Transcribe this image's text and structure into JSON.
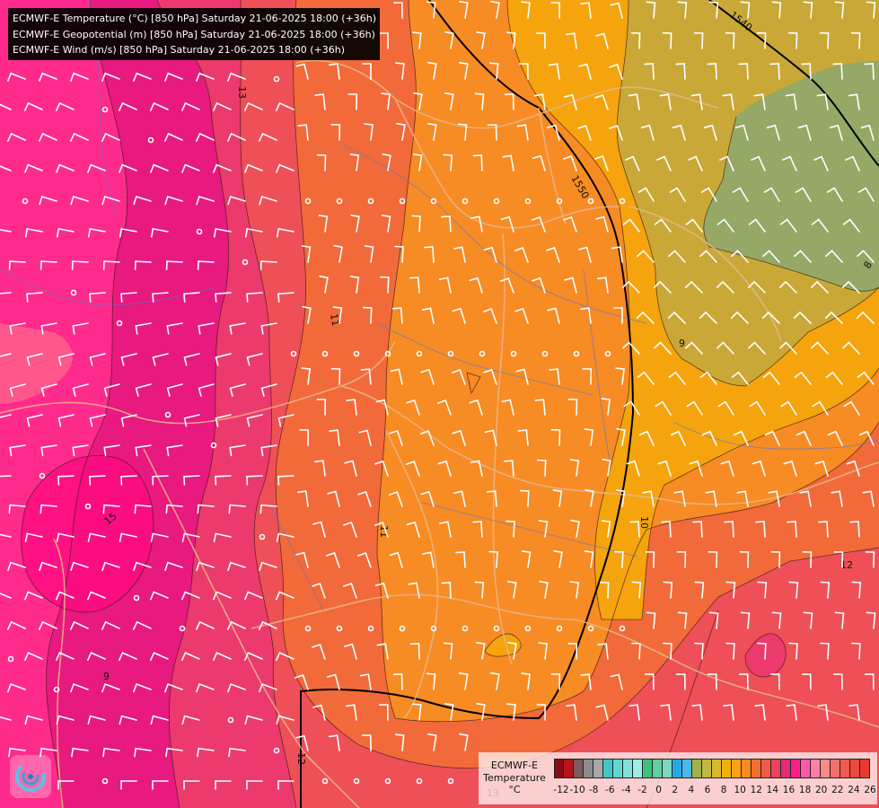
{
  "header": {
    "lines": [
      "ECMWF-E Temperature (°C) [850 hPa] Saturday 21-06-2025 18:00 (+36h)",
      "ECMWF-E Geopotential (m) [850 hPa] Saturday 21-06-2025 18:00 (+36h)",
      "ECMWF-E Wind (m/s) [850 hPa] Saturday 21-06-2025 18:00 (+36h)"
    ]
  },
  "map": {
    "contour_labels": {
      "geo_1540": "1540",
      "geo_1550": "1550",
      "t13_top": "13",
      "t11_mid": "11",
      "t11_low": "11",
      "t10": "10",
      "t9": "9",
      "t8": "8",
      "t12": "12",
      "t15": "15",
      "t9_sw": "9",
      "t12_bottom": "12",
      "t13_bottom": "13"
    },
    "region_colors": {
      "t_le_9": "#96a866",
      "t_9_10": "#c9a838",
      "t_10_11": "#f5a40e",
      "t_11_12": "#f78b24",
      "t_12_13": "#f26a3a",
      "t_13_14": "#ef4f57",
      "t_14_15": "#ec3a6d",
      "t_15_16": "#e8197f",
      "t_16_plus": "#ff2b8c"
    }
  },
  "legend": {
    "title_lines": [
      "ECMWF-E",
      "Temperature",
      "°C"
    ],
    "colors": [
      "#8e0a14",
      "#b8141a",
      "#7a5a5a",
      "#8c8c8c",
      "#a8a8a8",
      "#40c8c8",
      "#5fd8d0",
      "#80e0dc",
      "#a0ece6",
      "#3ec27a",
      "#5cd0a0",
      "#7ad8c0",
      "#28a8e0",
      "#4ab8e8",
      "#a0b44c",
      "#c0b840",
      "#d8b830",
      "#f0b010",
      "#f8a018",
      "#f88a22",
      "#f47032",
      "#f05a46",
      "#ec4260",
      "#e62a78",
      "#ff1f8c",
      "#ff5aa8",
      "#ff7faa",
      "#fc8a8a",
      "#f56f6f",
      "#f05a50",
      "#ea4a3c",
      "#e43c30"
    ],
    "tick_labels": [
      "-12",
      "-10",
      "-8",
      "-6",
      "-4",
      "-2",
      "0",
      "2",
      "4",
      "6",
      "8",
      "10",
      "12",
      "14",
      "16",
      "18",
      "20",
      "22",
      "24",
      "26"
    ]
  }
}
